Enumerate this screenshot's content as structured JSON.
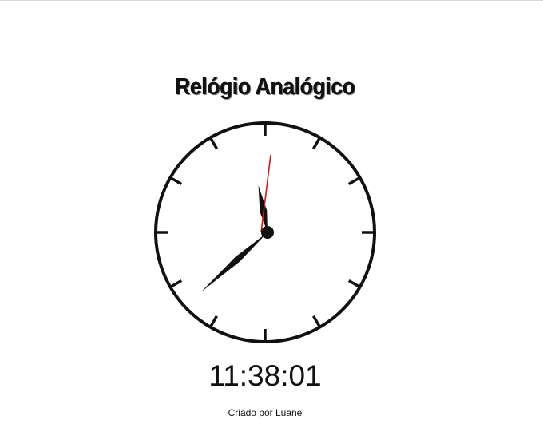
{
  "header": {
    "title": "Relógio Analógico"
  },
  "clock": {
    "hours": 11,
    "minutes": 38,
    "seconds": 1,
    "tick_count": 12,
    "colors": {
      "face": "#ffffff",
      "border": "#111111",
      "hands": "#111111",
      "second_hand": "#d21818"
    }
  },
  "digital": {
    "time_text": "11:38:01"
  },
  "footer": {
    "credit": "Criado por Luane"
  }
}
